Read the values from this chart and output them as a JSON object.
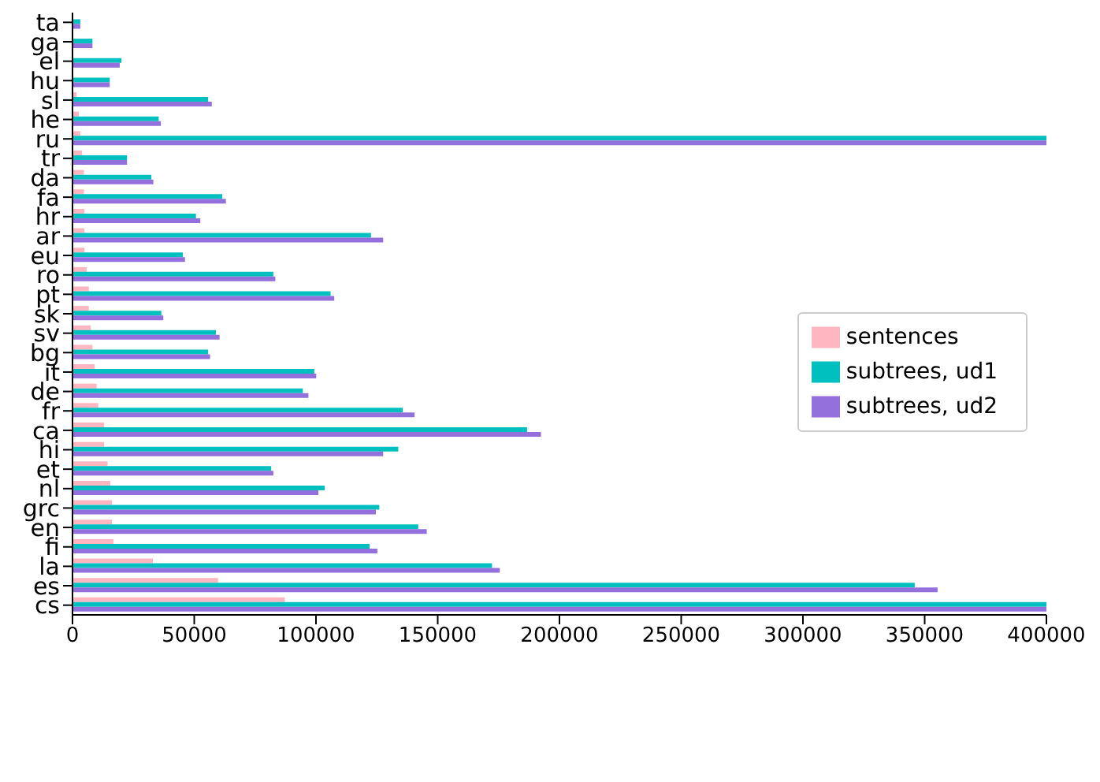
{
  "chart_data": {
    "type": "bar",
    "orientation": "horizontal",
    "categories": [
      "ta",
      "ga",
      "el",
      "hu",
      "sl",
      "he",
      "ru",
      "tr",
      "da",
      "fa",
      "hr",
      "ar",
      "eu",
      "ro",
      "pt",
      "sk",
      "sv",
      "bg",
      "it",
      "de",
      "fr",
      "ca",
      "hi",
      "et",
      "nl",
      "grc",
      "en",
      "fi",
      "la",
      "es",
      "cs"
    ],
    "series": [
      {
        "name": "sentences",
        "color": "#ffb6c1",
        "values": [
          null,
          null,
          null,
          null,
          1700,
          2600,
          3200,
          3900,
          4700,
          4700,
          4900,
          4900,
          4900,
          5800,
          6700,
          6700,
          7500,
          8200,
          9100,
          9900,
          10600,
          13000,
          13000,
          14400,
          15500,
          16200,
          16200,
          16800,
          33000,
          59800,
          87200
        ]
      },
      {
        "name": "subtrees, ud1",
        "color": "#00bfbf",
        "values": [
          3200,
          8200,
          20100,
          15300,
          55700,
          35400,
          400000,
          22400,
          32400,
          61500,
          50700,
          122600,
          45300,
          82500,
          106000,
          36500,
          58900,
          55700,
          99300,
          94600,
          135600,
          186700,
          133800,
          81600,
          103600,
          126000,
          142000,
          122000,
          172300,
          345900,
          400000
        ]
      },
      {
        "name": "subtrees, ud2",
        "color": "#9370db",
        "values": [
          3200,
          8200,
          19400,
          15300,
          57200,
          36300,
          400000,
          22400,
          33200,
          63000,
          52500,
          127600,
          46200,
          83300,
          107500,
          37300,
          60400,
          56500,
          100100,
          96900,
          140500,
          192400,
          127600,
          82500,
          101000,
          124600,
          145500,
          125200,
          175500,
          355300,
          400000
        ]
      }
    ],
    "xlim": [
      0,
      400000
    ],
    "xticks": [
      0,
      50000,
      100000,
      150000,
      200000,
      250000,
      300000,
      350000,
      400000
    ],
    "grid": false,
    "legend": "right"
  }
}
